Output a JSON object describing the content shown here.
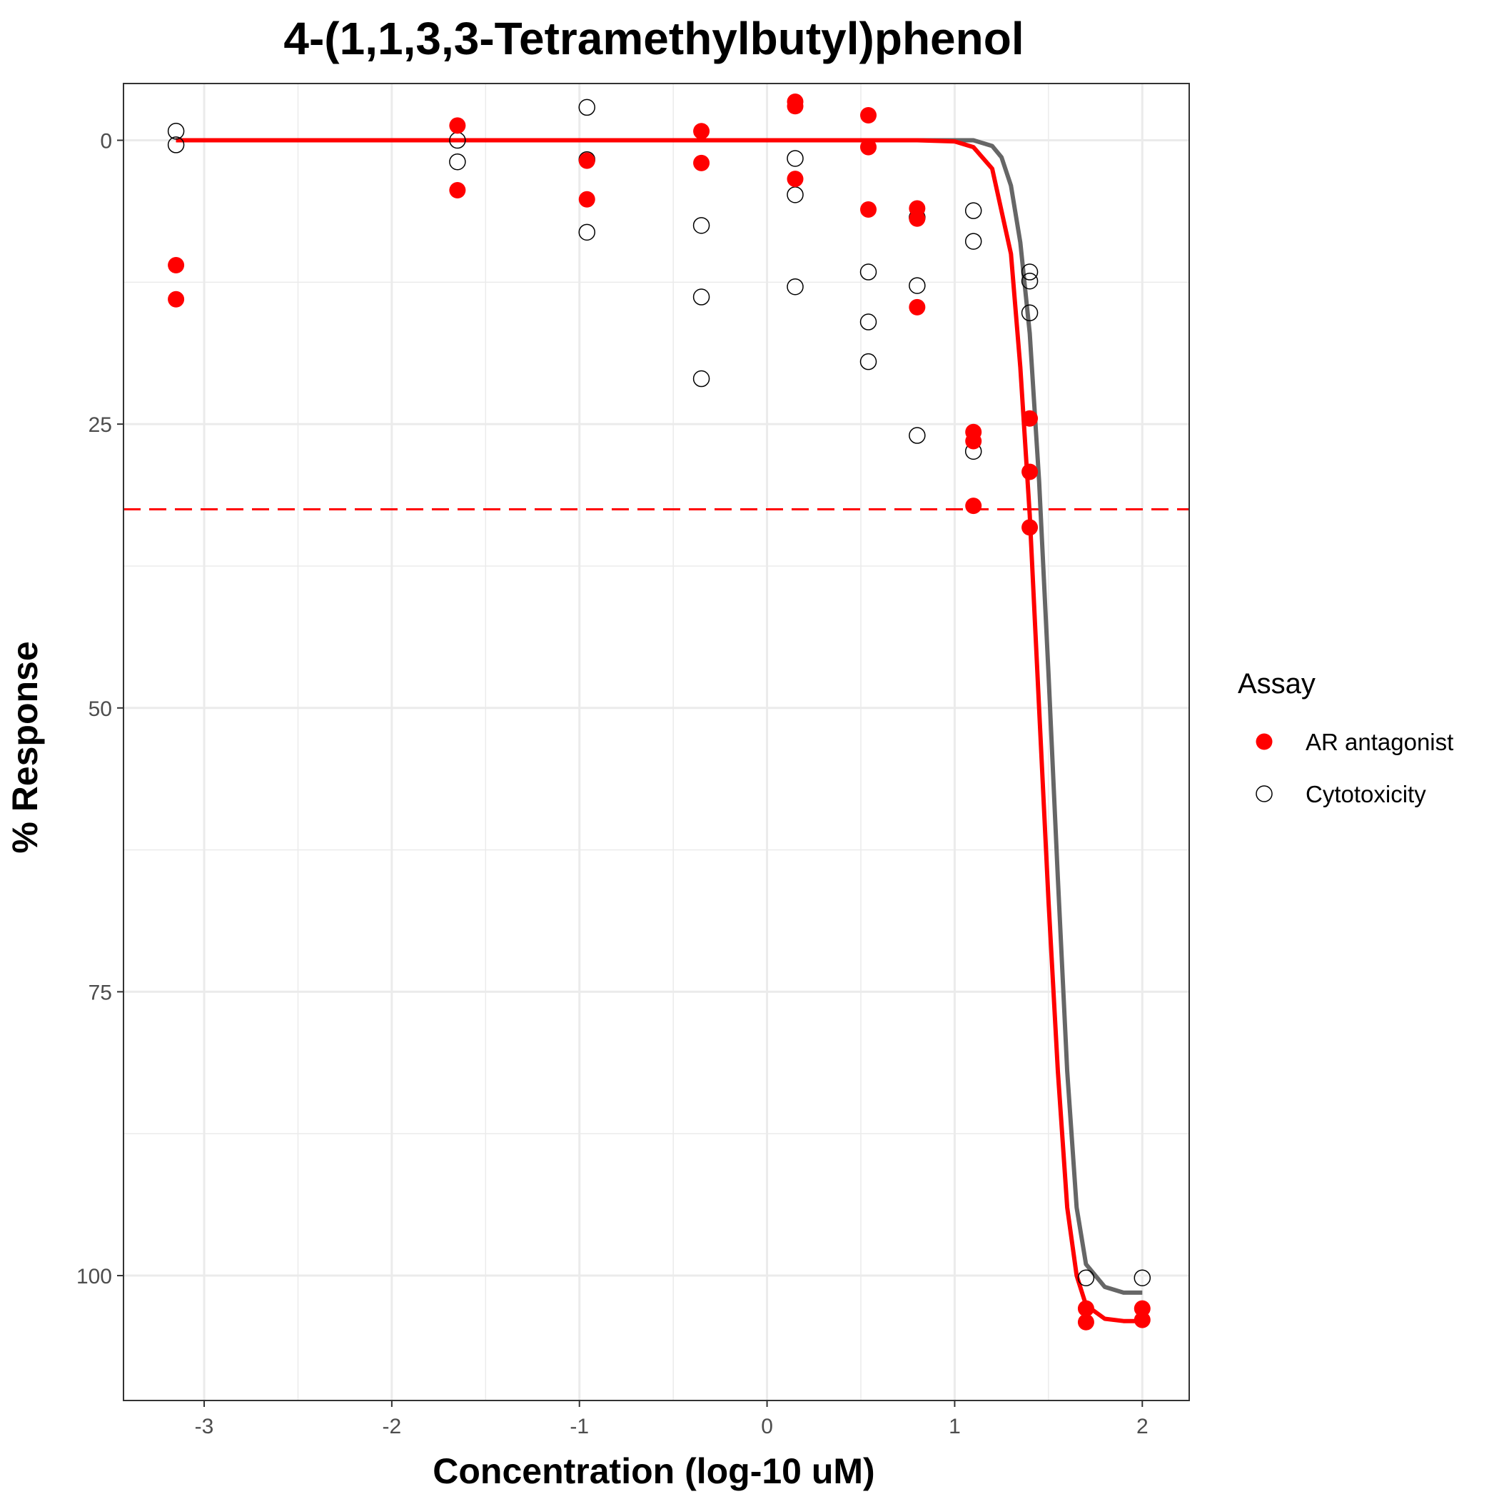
{
  "chart_data": {
    "type": "scatter",
    "title": "4-(1,1,3,3-Tetramethylbutyl)phenol",
    "xlabel": "Concentration (log-10 uM)",
    "ylabel": "% Response",
    "xlim": [
      -3.43,
      2.25
    ],
    "ylim": [
      111,
      -5
    ],
    "y_reversed": true,
    "x_ticks": [
      -3,
      -2,
      -1,
      0,
      1,
      2
    ],
    "x_tick_labels": [
      "-3",
      "-2",
      "-1",
      "0",
      "1",
      "2"
    ],
    "y_ticks": [
      0,
      25,
      50,
      75,
      100
    ],
    "y_tick_labels": [
      "0",
      "25",
      "50",
      "75",
      "100"
    ],
    "grid": true,
    "legend": {
      "title": "Assay",
      "position": "right"
    },
    "threshold": {
      "y": 32.5,
      "color": "#ff0000",
      "style": "dashed"
    },
    "series": [
      {
        "name": "AR antagonist",
        "color": "#ff0000",
        "marker": "filled-circle",
        "points": [
          [
            -3.15,
            11
          ],
          [
            -3.15,
            14
          ],
          [
            -1.65,
            -1.3
          ],
          [
            -1.65,
            4.4
          ],
          [
            -0.96,
            1.8
          ],
          [
            -0.96,
            5.2
          ],
          [
            -0.35,
            -0.8
          ],
          [
            -0.35,
            2
          ],
          [
            0.15,
            -3.4
          ],
          [
            0.15,
            -3
          ],
          [
            0.15,
            3.4
          ],
          [
            0.54,
            -2.2
          ],
          [
            0.54,
            0.6
          ],
          [
            0.54,
            6.1
          ],
          [
            0.8,
            6
          ],
          [
            0.8,
            6.9
          ],
          [
            0.8,
            14.7
          ],
          [
            1.1,
            25.7
          ],
          [
            1.1,
            26.5
          ],
          [
            1.1,
            32.2
          ],
          [
            1.4,
            24.5
          ],
          [
            1.4,
            29.2
          ],
          [
            1.4,
            34.1
          ],
          [
            1.7,
            102.9
          ],
          [
            1.7,
            104.1
          ],
          [
            2.0,
            102.9
          ],
          [
            2.0,
            103.9
          ]
        ],
        "curve": [
          [
            -3.15,
            0
          ],
          [
            -2,
            0
          ],
          [
            -1,
            0
          ],
          [
            0,
            0
          ],
          [
            0.8,
            0
          ],
          [
            1.0,
            0.1
          ],
          [
            1.1,
            0.6
          ],
          [
            1.2,
            2.5
          ],
          [
            1.3,
            10
          ],
          [
            1.35,
            20
          ],
          [
            1.4,
            33
          ],
          [
            1.45,
            50
          ],
          [
            1.5,
            67
          ],
          [
            1.55,
            82
          ],
          [
            1.6,
            94
          ],
          [
            1.65,
            100
          ],
          [
            1.7,
            102.6
          ],
          [
            1.8,
            103.8
          ],
          [
            1.9,
            104
          ],
          [
            2.0,
            104
          ]
        ]
      },
      {
        "name": "Cytotoxicity",
        "color": "#000000",
        "marker": "open-circle",
        "curve_color": "#666666",
        "points": [
          [
            -3.15,
            -0.8
          ],
          [
            -3.15,
            0.4
          ],
          [
            -1.65,
            0
          ],
          [
            -1.65,
            1.9
          ],
          [
            -0.96,
            -2.9
          ],
          [
            -0.96,
            1.7
          ],
          [
            -0.96,
            8.1
          ],
          [
            -0.35,
            7.5
          ],
          [
            -0.35,
            13.8
          ],
          [
            -0.35,
            21
          ],
          [
            0.15,
            1.6
          ],
          [
            0.15,
            4.8
          ],
          [
            0.15,
            12.9
          ],
          [
            0.54,
            11.6
          ],
          [
            0.54,
            16
          ],
          [
            0.54,
            19.5
          ],
          [
            0.8,
            6.8
          ],
          [
            0.8,
            12.8
          ],
          [
            0.8,
            26
          ],
          [
            1.1,
            6.2
          ],
          [
            1.1,
            8.9
          ],
          [
            1.1,
            27.4
          ],
          [
            1.4,
            11.6
          ],
          [
            1.4,
            12.4
          ],
          [
            1.4,
            15.2
          ],
          [
            1.7,
            100.2
          ],
          [
            2.0,
            100.2
          ]
        ],
        "curve": [
          [
            -3.15,
            0
          ],
          [
            -2,
            0
          ],
          [
            -1,
            0
          ],
          [
            0,
            0
          ],
          [
            0.9,
            0
          ],
          [
            1.1,
            0
          ],
          [
            1.2,
            0.5
          ],
          [
            1.25,
            1.5
          ],
          [
            1.3,
            4
          ],
          [
            1.35,
            9
          ],
          [
            1.4,
            17
          ],
          [
            1.45,
            30
          ],
          [
            1.5,
            47
          ],
          [
            1.55,
            65
          ],
          [
            1.6,
            82
          ],
          [
            1.65,
            94
          ],
          [
            1.7,
            99
          ],
          [
            1.8,
            101
          ],
          [
            1.9,
            101.5
          ],
          [
            2.0,
            101.5
          ]
        ]
      }
    ]
  }
}
